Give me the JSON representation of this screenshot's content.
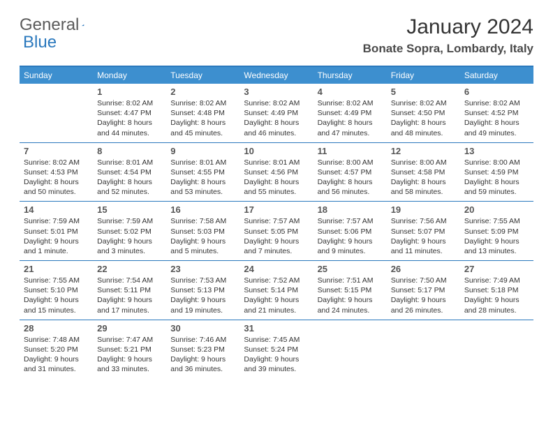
{
  "logo": {
    "word1": "General",
    "word2": "Blue"
  },
  "title": "January 2024",
  "location": "Bonate Sopra, Lombardy, Italy",
  "colors": {
    "header_bg": "#3d8fcf",
    "border": "#2a78bd",
    "text": "#333333",
    "logo_gray": "#5a5a5a",
    "logo_blue": "#2a78bd"
  },
  "day_names": [
    "Sunday",
    "Monday",
    "Tuesday",
    "Wednesday",
    "Thursday",
    "Friday",
    "Saturday"
  ],
  "weeks": [
    [
      {
        "n": "",
        "sr": "",
        "ss": "",
        "dl": ""
      },
      {
        "n": "1",
        "sr": "Sunrise: 8:02 AM",
        "ss": "Sunset: 4:47 PM",
        "dl": "Daylight: 8 hours and 44 minutes."
      },
      {
        "n": "2",
        "sr": "Sunrise: 8:02 AM",
        "ss": "Sunset: 4:48 PM",
        "dl": "Daylight: 8 hours and 45 minutes."
      },
      {
        "n": "3",
        "sr": "Sunrise: 8:02 AM",
        "ss": "Sunset: 4:49 PM",
        "dl": "Daylight: 8 hours and 46 minutes."
      },
      {
        "n": "4",
        "sr": "Sunrise: 8:02 AM",
        "ss": "Sunset: 4:49 PM",
        "dl": "Daylight: 8 hours and 47 minutes."
      },
      {
        "n": "5",
        "sr": "Sunrise: 8:02 AM",
        "ss": "Sunset: 4:50 PM",
        "dl": "Daylight: 8 hours and 48 minutes."
      },
      {
        "n": "6",
        "sr": "Sunrise: 8:02 AM",
        "ss": "Sunset: 4:52 PM",
        "dl": "Daylight: 8 hours and 49 minutes."
      }
    ],
    [
      {
        "n": "7",
        "sr": "Sunrise: 8:02 AM",
        "ss": "Sunset: 4:53 PM",
        "dl": "Daylight: 8 hours and 50 minutes."
      },
      {
        "n": "8",
        "sr": "Sunrise: 8:01 AM",
        "ss": "Sunset: 4:54 PM",
        "dl": "Daylight: 8 hours and 52 minutes."
      },
      {
        "n": "9",
        "sr": "Sunrise: 8:01 AM",
        "ss": "Sunset: 4:55 PM",
        "dl": "Daylight: 8 hours and 53 minutes."
      },
      {
        "n": "10",
        "sr": "Sunrise: 8:01 AM",
        "ss": "Sunset: 4:56 PM",
        "dl": "Daylight: 8 hours and 55 minutes."
      },
      {
        "n": "11",
        "sr": "Sunrise: 8:00 AM",
        "ss": "Sunset: 4:57 PM",
        "dl": "Daylight: 8 hours and 56 minutes."
      },
      {
        "n": "12",
        "sr": "Sunrise: 8:00 AM",
        "ss": "Sunset: 4:58 PM",
        "dl": "Daylight: 8 hours and 58 minutes."
      },
      {
        "n": "13",
        "sr": "Sunrise: 8:00 AM",
        "ss": "Sunset: 4:59 PM",
        "dl": "Daylight: 8 hours and 59 minutes."
      }
    ],
    [
      {
        "n": "14",
        "sr": "Sunrise: 7:59 AM",
        "ss": "Sunset: 5:01 PM",
        "dl": "Daylight: 9 hours and 1 minute."
      },
      {
        "n": "15",
        "sr": "Sunrise: 7:59 AM",
        "ss": "Sunset: 5:02 PM",
        "dl": "Daylight: 9 hours and 3 minutes."
      },
      {
        "n": "16",
        "sr": "Sunrise: 7:58 AM",
        "ss": "Sunset: 5:03 PM",
        "dl": "Daylight: 9 hours and 5 minutes."
      },
      {
        "n": "17",
        "sr": "Sunrise: 7:57 AM",
        "ss": "Sunset: 5:05 PM",
        "dl": "Daylight: 9 hours and 7 minutes."
      },
      {
        "n": "18",
        "sr": "Sunrise: 7:57 AM",
        "ss": "Sunset: 5:06 PM",
        "dl": "Daylight: 9 hours and 9 minutes."
      },
      {
        "n": "19",
        "sr": "Sunrise: 7:56 AM",
        "ss": "Sunset: 5:07 PM",
        "dl": "Daylight: 9 hours and 11 minutes."
      },
      {
        "n": "20",
        "sr": "Sunrise: 7:55 AM",
        "ss": "Sunset: 5:09 PM",
        "dl": "Daylight: 9 hours and 13 minutes."
      }
    ],
    [
      {
        "n": "21",
        "sr": "Sunrise: 7:55 AM",
        "ss": "Sunset: 5:10 PM",
        "dl": "Daylight: 9 hours and 15 minutes."
      },
      {
        "n": "22",
        "sr": "Sunrise: 7:54 AM",
        "ss": "Sunset: 5:11 PM",
        "dl": "Daylight: 9 hours and 17 minutes."
      },
      {
        "n": "23",
        "sr": "Sunrise: 7:53 AM",
        "ss": "Sunset: 5:13 PM",
        "dl": "Daylight: 9 hours and 19 minutes."
      },
      {
        "n": "24",
        "sr": "Sunrise: 7:52 AM",
        "ss": "Sunset: 5:14 PM",
        "dl": "Daylight: 9 hours and 21 minutes."
      },
      {
        "n": "25",
        "sr": "Sunrise: 7:51 AM",
        "ss": "Sunset: 5:15 PM",
        "dl": "Daylight: 9 hours and 24 minutes."
      },
      {
        "n": "26",
        "sr": "Sunrise: 7:50 AM",
        "ss": "Sunset: 5:17 PM",
        "dl": "Daylight: 9 hours and 26 minutes."
      },
      {
        "n": "27",
        "sr": "Sunrise: 7:49 AM",
        "ss": "Sunset: 5:18 PM",
        "dl": "Daylight: 9 hours and 28 minutes."
      }
    ],
    [
      {
        "n": "28",
        "sr": "Sunrise: 7:48 AM",
        "ss": "Sunset: 5:20 PM",
        "dl": "Daylight: 9 hours and 31 minutes."
      },
      {
        "n": "29",
        "sr": "Sunrise: 7:47 AM",
        "ss": "Sunset: 5:21 PM",
        "dl": "Daylight: 9 hours and 33 minutes."
      },
      {
        "n": "30",
        "sr": "Sunrise: 7:46 AM",
        "ss": "Sunset: 5:23 PM",
        "dl": "Daylight: 9 hours and 36 minutes."
      },
      {
        "n": "31",
        "sr": "Sunrise: 7:45 AM",
        "ss": "Sunset: 5:24 PM",
        "dl": "Daylight: 9 hours and 39 minutes."
      },
      {
        "n": "",
        "sr": "",
        "ss": "",
        "dl": ""
      },
      {
        "n": "",
        "sr": "",
        "ss": "",
        "dl": ""
      },
      {
        "n": "",
        "sr": "",
        "ss": "",
        "dl": ""
      }
    ]
  ]
}
